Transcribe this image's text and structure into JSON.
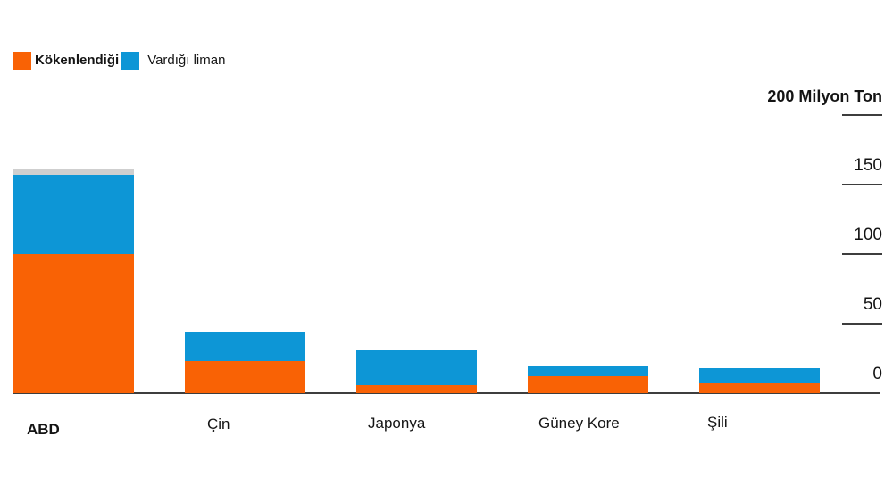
{
  "legend": {
    "items": [
      {
        "label": "Kökenlendiği",
        "color": "#f96205",
        "bold": true
      },
      {
        "label": "Vardığı liman",
        "color": "#0d96d6",
        "bold": false
      }
    ]
  },
  "chart_data": {
    "type": "bar",
    "stacked": true,
    "grid": false,
    "legend_position": "top-left",
    "categories": [
      {
        "label": "ABD",
        "bold": true
      },
      {
        "label": "Çin",
        "bold": false
      },
      {
        "label": "Japonya",
        "bold": false
      },
      {
        "label": "Güney Kore",
        "bold": false
      },
      {
        "label": "Şili",
        "bold": false
      }
    ],
    "series": [
      {
        "name": "Kökenlendiği",
        "color": "#f96205",
        "values": [
          100,
          23,
          6,
          12,
          7
        ]
      },
      {
        "name": "Vardığı liman",
        "color": "#0d96d6",
        "values": [
          57,
          21,
          25,
          7,
          11
        ]
      },
      {
        "name": "unlabeled-gray-cap",
        "color": "#cfcfcf",
        "values": [
          4,
          0,
          0,
          0,
          0
        ]
      }
    ],
    "ylabel": "Milyon Ton",
    "ylim": [
      0,
      200
    ],
    "y_axis": {
      "position": "right",
      "min": 0,
      "max": 200,
      "ticks": [
        {
          "value": 200,
          "label": "200 Milyon Ton",
          "bold": true,
          "line": true
        },
        {
          "value": 150,
          "label": "150",
          "bold": false,
          "line": true
        },
        {
          "value": 100,
          "label": "100",
          "bold": false,
          "line": true
        },
        {
          "value": 50,
          "label": "50",
          "bold": false,
          "line": true
        },
        {
          "value": 0,
          "label": "0",
          "bold": false,
          "line": false
        }
      ]
    }
  },
  "colors": {
    "axis": "#3d3d3d",
    "text": "#141414",
    "background": "#ffffff"
  }
}
